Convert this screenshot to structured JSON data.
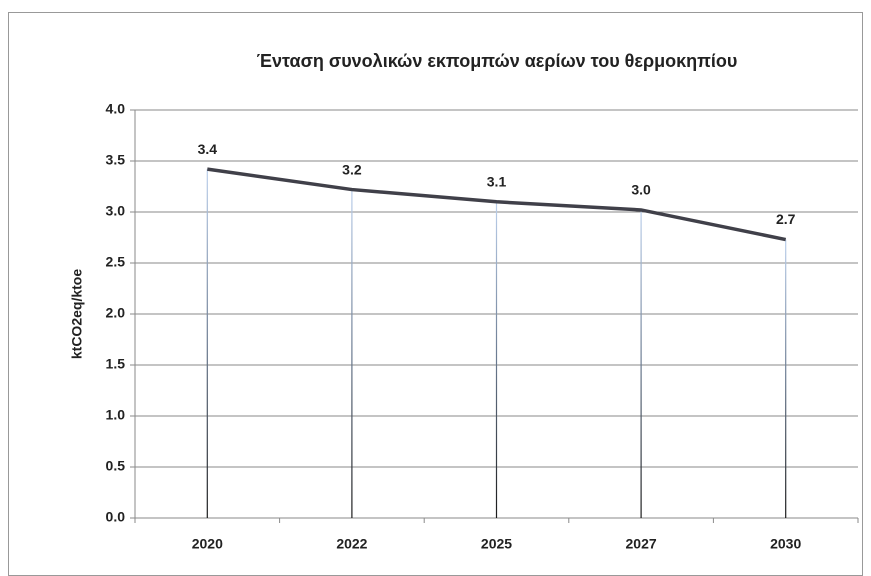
{
  "chart_data": {
    "type": "line",
    "title": "Ένταση συνολικών εκπομπών αερίων του θερμοκηπίου",
    "y_label": "ktCO2eq/ktoe",
    "categories": [
      "2020",
      "2022",
      "2025",
      "2027",
      "2030"
    ],
    "values": [
      3.42,
      3.22,
      3.1,
      3.02,
      2.73
    ],
    "value_labels": [
      "3.4",
      "3.2",
      "3.1",
      "3.0",
      "2.7"
    ],
    "color": "#404049",
    "ylim": [
      0,
      4
    ],
    "yticks": [
      {
        "value": 0,
        "label": "0.0"
      },
      0.5,
      {
        "value": 1,
        "label": "1.0"
      },
      1.5,
      {
        "value": 2,
        "label": "2.0"
      },
      2.5,
      {
        "value": 3,
        "label": "3.0"
      },
      3.5,
      {
        "value": 4,
        "label": "4.0"
      }
    ],
    "grid": true
  }
}
